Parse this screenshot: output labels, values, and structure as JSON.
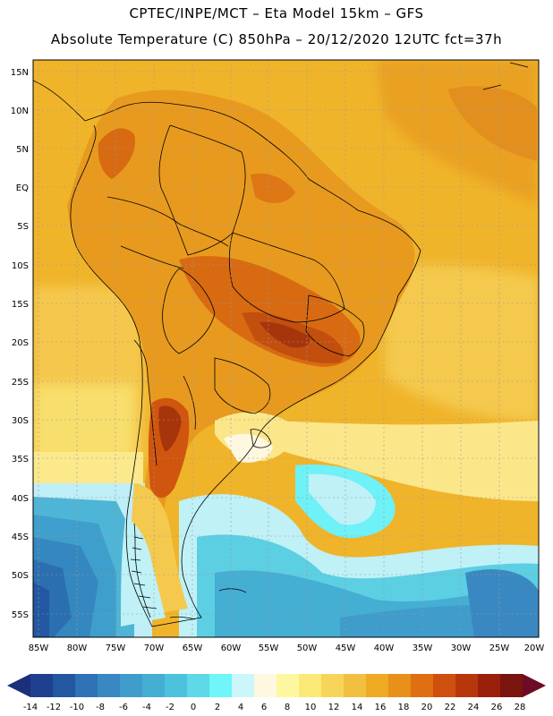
{
  "header": {
    "line1": "CPTEC/INPE/MCT –  Eta Model 15km – GFS",
    "line2": "Absolute Temperature (C) 850hPa – 20/12/2020 12UTC fct=37h"
  },
  "map": {
    "lat_labels": [
      "15N",
      "10N",
      "5N",
      "EQ",
      "5S",
      "10S",
      "15S",
      "20S",
      "25S",
      "30S",
      "35S",
      "40S",
      "45S",
      "50S",
      "55S"
    ],
    "lon_labels": [
      "85W",
      "80W",
      "75W",
      "70W",
      "65W",
      "60W",
      "55W",
      "50W",
      "45W",
      "40W",
      "35W",
      "30W",
      "25W",
      "20W"
    ]
  },
  "colorbar": {
    "labels": [
      "-14",
      "-12",
      "-10",
      "-8",
      "-6",
      "-4",
      "-2",
      "0",
      "2",
      "4",
      "6",
      "8",
      "10",
      "12",
      "14",
      "16",
      "18",
      "20",
      "22",
      "24",
      "26",
      "28"
    ],
    "colors": [
      "#1f3f8f",
      "#2357a2",
      "#2f72b5",
      "#3a88c2",
      "#3f9ccb",
      "#44aed3",
      "#4cc2dc",
      "#5fd8e8",
      "#6ff6f8",
      "#cbf6fb",
      "#fff8e0",
      "#fff7a0",
      "#fbe977",
      "#f7d55a",
      "#f2c041",
      "#eeaa22",
      "#e8901a",
      "#df6f12",
      "#cf500e",
      "#b8360c",
      "#9b200c",
      "#7a140f"
    ],
    "under_color": "#1b2f7a",
    "over_color": "#6e0b25"
  }
}
